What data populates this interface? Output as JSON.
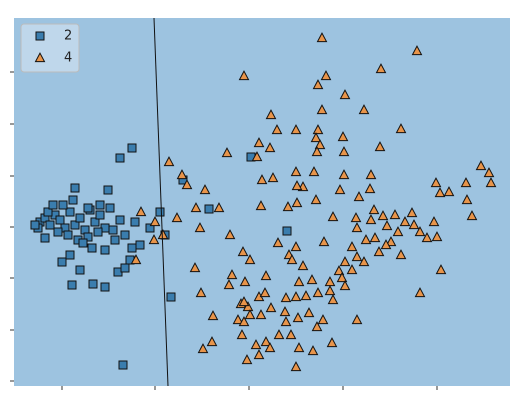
{
  "chart_data": {
    "type": "scatter",
    "background": "#9dc3e0",
    "legend": "upper left",
    "xlim": [
      14,
      510
    ],
    "xticks": [
      62,
      155,
      249,
      343,
      437
    ],
    "ylim": [
      386,
      18
    ],
    "yticks": [
      381,
      330,
      278,
      227,
      176,
      124,
      72
    ],
    "series": [
      {
        "name": "2",
        "marker": "square",
        "color": "#3a7dae",
        "x": [
          40,
          45,
          50,
          55,
          60,
          65,
          70,
          75,
          80,
          85,
          90,
          95,
          100,
          105,
          110,
          38,
          48,
          58,
          68,
          78,
          88,
          98,
          63,
          73,
          53,
          108,
          75,
          62,
          70,
          80,
          72,
          93,
          105,
          118,
          125,
          130,
          105,
          115,
          125,
          135,
          132,
          150,
          165,
          183,
          209,
          171,
          123,
          120,
          132,
          251,
          287,
          92,
          83,
          45,
          35,
          88,
          100,
          113,
          120,
          160,
          140
        ],
        "values": [
          222,
          218,
          225,
          215,
          220,
          228,
          212,
          225,
          218,
          230,
          210,
          222,
          215,
          228,
          208,
          228,
          212,
          232,
          235,
          240,
          237,
          232,
          205,
          200,
          205,
          190,
          188,
          262,
          255,
          270,
          285,
          284,
          287,
          272,
          268,
          260,
          250,
          240,
          235,
          222,
          248,
          228,
          235,
          180,
          209,
          297,
          365,
          158,
          148,
          157,
          231,
          248,
          243,
          238,
          225,
          208,
          205,
          230,
          220,
          212,
          245
        ]
      },
      {
        "name": "4",
        "marker": "triangle",
        "color": "#e8944a",
        "x": [
          322,
          417,
          244,
          381,
          326,
          318,
          345,
          322,
          364,
          271,
          277,
          296,
          318,
          401,
          316,
          343,
          259,
          320,
          270,
          380,
          257,
          317,
          344,
          227,
          169,
          182,
          273,
          262,
          296,
          314,
          303,
          297,
          344,
          371,
          187,
          205,
          196,
          219,
          261,
          288,
          316,
          297,
          359,
          370,
          340,
          333,
          356,
          374,
          383,
          395,
          412,
          436,
          449,
          466,
          481,
          489,
          491,
          467,
          472,
          440,
          434,
          420,
          427,
          437,
          414,
          398,
          401,
          375,
          391,
          366,
          357,
          352,
          345,
          339,
          342,
          330,
          324,
          296,
          289,
          278,
          243,
          250,
          266,
          245,
          232,
          229,
          195,
          201,
          213,
          241,
          248,
          259,
          271,
          265,
          286,
          296,
          306,
          318,
          330,
          312,
          299,
          303,
          292,
          352,
          357,
          364,
          379,
          420,
          441,
          357,
          332,
          317,
          309,
          298,
          286,
          285,
          261,
          256,
          266,
          242,
          238,
          244,
          247,
          203,
          212,
          259,
          270,
          296,
          299,
          313,
          323,
          279,
          291,
          154,
          136,
          141,
          163,
          177,
          230,
          155,
          244,
          250,
          333,
          345,
          371,
          387,
          386,
          405,
          200
        ],
        "values": [
          38,
          51,
          76,
          69,
          76,
          85,
          95,
          110,
          110,
          115,
          130,
          130,
          130,
          129,
          138,
          137,
          143,
          145,
          148,
          147,
          157,
          152,
          152,
          153,
          162,
          175,
          178,
          180,
          172,
          172,
          187,
          186,
          175,
          175,
          185,
          190,
          208,
          208,
          206,
          207,
          200,
          203,
          197,
          189,
          190,
          217,
          218,
          210,
          216,
          215,
          213,
          183,
          192,
          183,
          166,
          173,
          183,
          200,
          216,
          193,
          222,
          232,
          238,
          237,
          225,
          232,
          255,
          238,
          242,
          240,
          228,
          247,
          262,
          271,
          278,
          282,
          242,
          247,
          255,
          243,
          252,
          260,
          276,
          282,
          275,
          285,
          268,
          293,
          316,
          304,
          307,
          297,
          308,
          293,
          298,
          297,
          296,
          293,
          291,
          280,
          282,
          266,
          260,
          270,
          257,
          262,
          252,
          293,
          270,
          320,
          343,
          327,
          313,
          318,
          322,
          312,
          315,
          345,
          342,
          335,
          320,
          322,
          360,
          349,
          342,
          355,
          348,
          367,
          348,
          351,
          320,
          335,
          335,
          240,
          260,
          212,
          235,
          218,
          235,
          222,
          302,
          315,
          300,
          286,
          220,
          226,
          245,
          222,
          228
        ]
      }
    ]
  }
}
